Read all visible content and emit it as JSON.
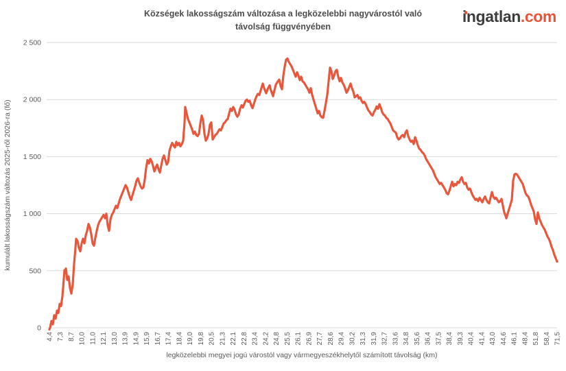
{
  "header": {
    "title_line1": "Községek lakosságszám változása a legközelebbi nagyvárostól való",
    "title_line2": "távolság függvényében",
    "logo": {
      "text_dark": "ingatlan",
      "text_accent": ".com",
      "accent_color": "#e8543a",
      "dark_color": "#3d3d3d"
    }
  },
  "chart_data": {
    "type": "line",
    "title": "Községek lakosságszám változása a legközelebbi nagyvárostól való távolság függvényében",
    "xlabel": "legközelebbi megyei jogú várostól vagy vármegyeszékhelytől számított távolság (km)",
    "ylabel": "kumulált lakosságszám változás 2025-ről 2026-ra (fő)",
    "ylim": [
      0,
      2500
    ],
    "grid": "horizontal",
    "legend": "none",
    "line_color": "#e8563c",
    "grid_color": "#d9d9d9",
    "tick_text_color": "#595959",
    "y_tick_values": [
      0,
      500,
      1000,
      1500,
      2000,
      2500
    ],
    "y_tick_labels": [
      "0",
      "500",
      "1 000",
      "1 500",
      "2 000",
      "2 500"
    ],
    "x_tick_labels": [
      "4,4",
      "7,3",
      "8,7",
      "10,0",
      "11,0",
      "12,1",
      "13,0",
      "13,9",
      "14,9",
      "15,9",
      "16,7",
      "17,4",
      "18,4",
      "19,0",
      "19,8",
      "20,5",
      "21,3",
      "22,1",
      "22,8",
      "23,4",
      "24,2",
      "24,8",
      "25,5",
      "26,1",
      "26,9",
      "27,7",
      "28,6",
      "29,4",
      "30,2",
      "31,3",
      "31,9",
      "32,7",
      "33,6",
      "34,8",
      "35,6",
      "36,4",
      "37,5",
      "38,4",
      "39,3",
      "40,4",
      "41,4",
      "43,0",
      "44,6",
      "46,1",
      "48,4",
      "51,8",
      "58,4",
      "71,5"
    ],
    "points_note": "sampled polyline: x = relative position 0-740 along the x-axis (4,4 km ... 71,5 km), y = kumulált lakosságszám változás (fő)",
    "points": [
      [
        0,
        -15
      ],
      [
        1,
        0
      ],
      [
        3,
        60
      ],
      [
        5,
        30
      ],
      [
        7,
        110
      ],
      [
        9,
        80
      ],
      [
        11,
        150
      ],
      [
        13,
        130
      ],
      [
        15,
        210
      ],
      [
        17,
        190
      ],
      [
        19,
        280
      ],
      [
        20,
        350
      ],
      [
        21,
        430
      ],
      [
        22,
        505
      ],
      [
        23,
        480
      ],
      [
        24,
        520
      ],
      [
        26,
        420
      ],
      [
        28,
        450
      ],
      [
        30,
        350
      ],
      [
        32,
        300
      ],
      [
        34,
        380
      ],
      [
        36,
        560
      ],
      [
        38,
        700
      ],
      [
        39,
        780
      ],
      [
        41,
        760
      ],
      [
        43,
        700
      ],
      [
        45,
        670
      ],
      [
        47,
        740
      ],
      [
        49,
        780
      ],
      [
        51,
        740
      ],
      [
        53,
        810
      ],
      [
        55,
        850
      ],
      [
        57,
        910
      ],
      [
        59,
        880
      ],
      [
        61,
        820
      ],
      [
        63,
        740
      ],
      [
        65,
        720
      ],
      [
        67,
        790
      ],
      [
        69,
        850
      ],
      [
        71,
        900
      ],
      [
        73,
        930
      ],
      [
        75,
        950
      ],
      [
        77,
        970
      ],
      [
        79,
        990
      ],
      [
        81,
        960
      ],
      [
        83,
        1000
      ],
      [
        85,
        900
      ],
      [
        87,
        850
      ],
      [
        89,
        950
      ],
      [
        91,
        990
      ],
      [
        93,
        1010
      ],
      [
        95,
        1040
      ],
      [
        97,
        1070
      ],
      [
        99,
        1050
      ],
      [
        101,
        1090
      ],
      [
        103,
        1130
      ],
      [
        105,
        1160
      ],
      [
        107,
        1190
      ],
      [
        109,
        1220
      ],
      [
        111,
        1250
      ],
      [
        113,
        1230
      ],
      [
        115,
        1190
      ],
      [
        117,
        1150
      ],
      [
        119,
        1120
      ],
      [
        121,
        1160
      ],
      [
        123,
        1200
      ],
      [
        125,
        1240
      ],
      [
        127,
        1290
      ],
      [
        129,
        1310
      ],
      [
        131,
        1270
      ],
      [
        133,
        1240
      ],
      [
        135,
        1220
      ],
      [
        137,
        1230
      ],
      [
        139,
        1300
      ],
      [
        141,
        1400
      ],
      [
        143,
        1470
      ],
      [
        145,
        1440
      ],
      [
        147,
        1480
      ],
      [
        149,
        1460
      ],
      [
        151,
        1420
      ],
      [
        153,
        1370
      ],
      [
        155,
        1400
      ],
      [
        157,
        1430
      ],
      [
        159,
        1390
      ],
      [
        161,
        1360
      ],
      [
        163,
        1420
      ],
      [
        165,
        1480
      ],
      [
        167,
        1510
      ],
      [
        169,
        1470
      ],
      [
        171,
        1430
      ],
      [
        173,
        1450
      ],
      [
        175,
        1550
      ],
      [
        177,
        1590
      ],
      [
        179,
        1620
      ],
      [
        181,
        1600
      ],
      [
        183,
        1580
      ],
      [
        185,
        1630
      ],
      [
        187,
        1600
      ],
      [
        189,
        1620
      ],
      [
        191,
        1590
      ],
      [
        193,
        1610
      ],
      [
        195,
        1640
      ],
      [
        197,
        1800
      ],
      [
        198,
        1935
      ],
      [
        200,
        1880
      ],
      [
        202,
        1830
      ],
      [
        204,
        1800
      ],
      [
        206,
        1770
      ],
      [
        208,
        1740
      ],
      [
        210,
        1700
      ],
      [
        212,
        1720
      ],
      [
        214,
        1690
      ],
      [
        216,
        1680
      ],
      [
        218,
        1700
      ],
      [
        220,
        1790
      ],
      [
        222,
        1860
      ],
      [
        224,
        1820
      ],
      [
        226,
        1700
      ],
      [
        228,
        1640
      ],
      [
        230,
        1660
      ],
      [
        232,
        1700
      ],
      [
        234,
        1780
      ],
      [
        236,
        1800
      ],
      [
        238,
        1650
      ],
      [
        240,
        1670
      ],
      [
        242,
        1690
      ],
      [
        244,
        1700
      ],
      [
        246,
        1720
      ],
      [
        248,
        1740
      ],
      [
        250,
        1730
      ],
      [
        252,
        1760
      ],
      [
        254,
        1790
      ],
      [
        256,
        1800
      ],
      [
        258,
        1820
      ],
      [
        260,
        1830
      ],
      [
        262,
        1880
      ],
      [
        264,
        1920
      ],
      [
        266,
        1900
      ],
      [
        268,
        1935
      ],
      [
        270,
        1910
      ],
      [
        272,
        1870
      ],
      [
        274,
        1850
      ],
      [
        276,
        1870
      ],
      [
        278,
        1920
      ],
      [
        280,
        1950
      ],
      [
        282,
        1930
      ],
      [
        284,
        1960
      ],
      [
        286,
        1990
      ],
      [
        288,
        2000
      ],
      [
        290,
        1980
      ],
      [
        292,
        1990
      ],
      [
        294,
        1950
      ],
      [
        296,
        1925
      ],
      [
        298,
        1960
      ],
      [
        300,
        2000
      ],
      [
        302,
        2030
      ],
      [
        304,
        2050
      ],
      [
        306,
        2040
      ],
      [
        308,
        2080
      ],
      [
        311,
        2140
      ],
      [
        313,
        2100
      ],
      [
        316,
        2055
      ],
      [
        318,
        2090
      ],
      [
        321,
        2125
      ],
      [
        323,
        2080
      ],
      [
        326,
        2030
      ],
      [
        328,
        2080
      ],
      [
        330,
        2130
      ],
      [
        333,
        2160
      ],
      [
        335,
        2175
      ],
      [
        337,
        2120
      ],
      [
        339,
        2090
      ],
      [
        341,
        2210
      ],
      [
        343,
        2290
      ],
      [
        345,
        2350
      ],
      [
        347,
        2360
      ],
      [
        349,
        2330
      ],
      [
        351,
        2310
      ],
      [
        353,
        2290
      ],
      [
        355,
        2260
      ],
      [
        357,
        2230
      ],
      [
        359,
        2200
      ],
      [
        361,
        2240
      ],
      [
        363,
        2210
      ],
      [
        365,
        2170
      ],
      [
        367,
        2200
      ],
      [
        369,
        2160
      ],
      [
        371,
        2150
      ],
      [
        373,
        2130
      ],
      [
        375,
        2110
      ],
      [
        377,
        2090
      ],
      [
        379,
        2060
      ],
      [
        381,
        2100
      ],
      [
        383,
        2040
      ],
      [
        385,
        2000
      ],
      [
        387,
        1960
      ],
      [
        389,
        1920
      ],
      [
        391,
        1880
      ],
      [
        393,
        1900
      ],
      [
        395,
        1860
      ],
      [
        397,
        1845
      ],
      [
        399,
        1840
      ],
      [
        401,
        1900
      ],
      [
        403,
        1970
      ],
      [
        405,
        2040
      ],
      [
        407,
        2160
      ],
      [
        409,
        2280
      ],
      [
        411,
        2250
      ],
      [
        413,
        2180
      ],
      [
        415,
        2210
      ],
      [
        417,
        2250
      ],
      [
        419,
        2260
      ],
      [
        421,
        2200
      ],
      [
        423,
        2160
      ],
      [
        425,
        2190
      ],
      [
        427,
        2150
      ],
      [
        429,
        2130
      ],
      [
        431,
        2100
      ],
      [
        433,
        2060
      ],
      [
        435,
        2080
      ],
      [
        437,
        2110
      ],
      [
        439,
        2140
      ],
      [
        441,
        2100
      ],
      [
        443,
        2070
      ],
      [
        445,
        2020
      ],
      [
        447,
        2030
      ],
      [
        449,
        2040
      ],
      [
        451,
        2010
      ],
      [
        453,
        2020
      ],
      [
        455,
        1990
      ],
      [
        457,
        1970
      ],
      [
        459,
        1980
      ],
      [
        461,
        1960
      ],
      [
        463,
        1930
      ],
      [
        465,
        1905
      ],
      [
        467,
        1890
      ],
      [
        469,
        1870
      ],
      [
        471,
        1860
      ],
      [
        473,
        1890
      ],
      [
        475,
        1910
      ],
      [
        477,
        1940
      ],
      [
        479,
        1920
      ],
      [
        481,
        1960
      ],
      [
        483,
        1930
      ],
      [
        485,
        1890
      ],
      [
        487,
        1870
      ],
      [
        489,
        1860
      ],
      [
        491,
        1840
      ],
      [
        493,
        1830
      ],
      [
        495,
        1810
      ],
      [
        497,
        1790
      ],
      [
        499,
        1760
      ],
      [
        501,
        1730
      ],
      [
        503,
        1720
      ],
      [
        505,
        1710
      ],
      [
        507,
        1670
      ],
      [
        509,
        1650
      ],
      [
        511,
        1660
      ],
      [
        513,
        1680
      ],
      [
        515,
        1690
      ],
      [
        517,
        1670
      ],
      [
        519,
        1710
      ],
      [
        521,
        1730
      ],
      [
        523,
        1680
      ],
      [
        525,
        1650
      ],
      [
        527,
        1630
      ],
      [
        529,
        1640
      ],
      [
        531,
        1610
      ],
      [
        533,
        1670
      ],
      [
        535,
        1640
      ],
      [
        537,
        1600
      ],
      [
        539,
        1570
      ],
      [
        541,
        1560
      ],
      [
        543,
        1540
      ],
      [
        545,
        1530
      ],
      [
        547,
        1510
      ],
      [
        549,
        1480
      ],
      [
        551,
        1460
      ],
      [
        553,
        1440
      ],
      [
        555,
        1420
      ],
      [
        557,
        1400
      ],
      [
        559,
        1380
      ],
      [
        561,
        1350
      ],
      [
        563,
        1320
      ],
      [
        565,
        1300
      ],
      [
        567,
        1280
      ],
      [
        569,
        1260
      ],
      [
        571,
        1270
      ],
      [
        573,
        1250
      ],
      [
        575,
        1230
      ],
      [
        577,
        1210
      ],
      [
        579,
        1180
      ],
      [
        581,
        1170
      ],
      [
        583,
        1200
      ],
      [
        585,
        1240
      ],
      [
        587,
        1280
      ],
      [
        589,
        1240
      ],
      [
        591,
        1260
      ],
      [
        593,
        1250
      ],
      [
        595,
        1280
      ],
      [
        597,
        1270
      ],
      [
        599,
        1300
      ],
      [
        601,
        1320
      ],
      [
        603,
        1280
      ],
      [
        605,
        1260
      ],
      [
        607,
        1270
      ],
      [
        609,
        1230
      ],
      [
        611,
        1210
      ],
      [
        613,
        1220
      ],
      [
        615,
        1190
      ],
      [
        617,
        1160
      ],
      [
        619,
        1140
      ],
      [
        621,
        1120
      ],
      [
        623,
        1130
      ],
      [
        625,
        1110
      ],
      [
        627,
        1140
      ],
      [
        629,
        1120
      ],
      [
        631,
        1100
      ],
      [
        633,
        1130
      ],
      [
        635,
        1150
      ],
      [
        637,
        1120
      ],
      [
        639,
        1100
      ],
      [
        641,
        1090
      ],
      [
        643,
        1140
      ],
      [
        645,
        1190
      ],
      [
        647,
        1150
      ],
      [
        649,
        1130
      ],
      [
        651,
        1140
      ],
      [
        653,
        1120
      ],
      [
        655,
        1100
      ],
      [
        657,
        1110
      ],
      [
        659,
        1130
      ],
      [
        661,
        1070
      ],
      [
        663,
        1010
      ],
      [
        665,
        980
      ],
      [
        666,
        960
      ],
      [
        668,
        1000
      ],
      [
        670,
        1040
      ],
      [
        672,
        1080
      ],
      [
        674,
        1120
      ],
      [
        676,
        1290
      ],
      [
        678,
        1345
      ],
      [
        680,
        1350
      ],
      [
        682,
        1340
      ],
      [
        684,
        1320
      ],
      [
        686,
        1300
      ],
      [
        688,
        1280
      ],
      [
        690,
        1260
      ],
      [
        692,
        1220
      ],
      [
        694,
        1180
      ],
      [
        696,
        1160
      ],
      [
        698,
        1150
      ],
      [
        700,
        1120
      ],
      [
        702,
        1080
      ],
      [
        704,
        1050
      ],
      [
        706,
        1020
      ],
      [
        708,
        950
      ],
      [
        710,
        910
      ],
      [
        712,
        1010
      ],
      [
        714,
        960
      ],
      [
        716,
        930
      ],
      [
        718,
        900
      ],
      [
        720,
        880
      ],
      [
        722,
        860
      ],
      [
        724,
        830
      ],
      [
        726,
        800
      ],
      [
        728,
        780
      ],
      [
        730,
        750
      ],
      [
        732,
        710
      ],
      [
        734,
        680
      ],
      [
        736,
        640
      ],
      [
        738,
        610
      ],
      [
        740,
        580
      ]
    ]
  }
}
